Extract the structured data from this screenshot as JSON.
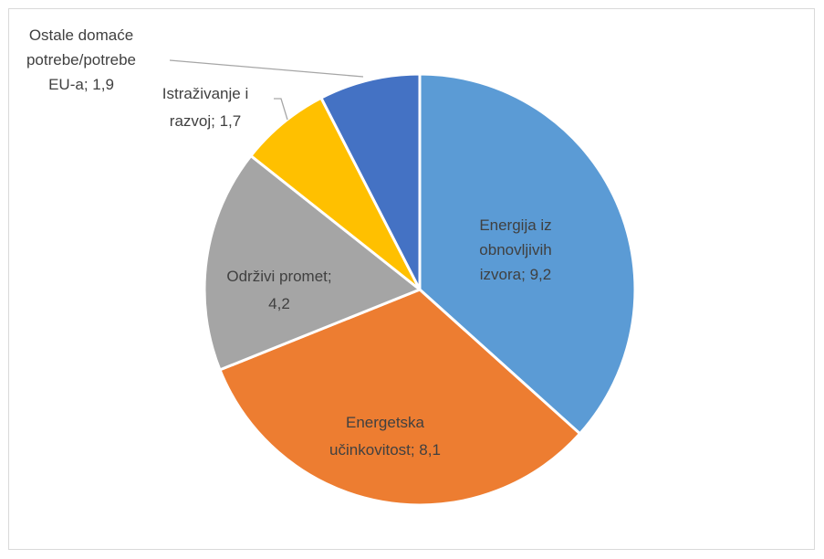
{
  "chart_data": {
    "type": "pie",
    "title": "",
    "slices": [
      {
        "name": "Energija iz obnovljivih izvora",
        "value": 9.2,
        "color": "#5b9bd5",
        "label_lines": [
          "Energija iz",
          "obnovljivih",
          "izvora; 9,2"
        ]
      },
      {
        "name": "Energetska učinkovitost",
        "value": 8.1,
        "color": "#ed7d31",
        "label_lines": [
          "Energetska",
          "učinkovitost; 8,1"
        ]
      },
      {
        "name": "Održivi promet",
        "value": 4.2,
        "color": "#a5a5a5",
        "label_lines": [
          "Održivi promet;",
          "4,2"
        ]
      },
      {
        "name": "Istraživanje i razvoj",
        "value": 1.7,
        "color": "#ffc000",
        "label_lines": [
          "Istraživanje i",
          "razvoj; 1,7"
        ]
      },
      {
        "name": "Ostale domaće potrebe/potrebe EU-a",
        "value": 1.9,
        "color": "#4472c4",
        "label_lines": [
          "Ostale domaće",
          "potrebe/potrebe",
          "EU-a; 1,9"
        ]
      }
    ],
    "legend": "none",
    "label_position": "inside/outside with leader lines"
  }
}
